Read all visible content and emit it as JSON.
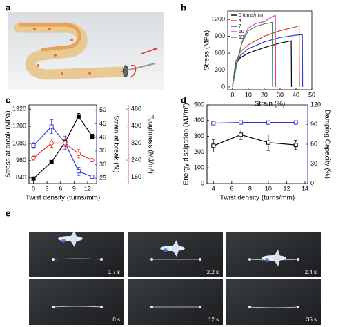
{
  "panel_labels": [
    "a",
    "b",
    "c",
    "d",
    "e"
  ],
  "chart_data": [
    {
      "type": "line",
      "xlabel": "Strain (%)",
      "ylabel": "Stress (MPa)",
      "xlim": [
        -3,
        50
      ],
      "xticks": [
        0,
        10,
        20,
        30,
        40,
        50
      ],
      "ylim": [
        -50,
        1350
      ],
      "yticks": [
        0,
        300,
        600,
        900,
        1200
      ],
      "legend": "upper left",
      "series": [
        {
          "name": "0 turns/mm",
          "color": "#000000",
          "x": [
            0,
            2,
            5,
            10,
            20,
            30,
            37,
            37.2
          ],
          "values": [
            0,
            400,
            520,
            600,
            700,
            780,
            820,
            0
          ]
        },
        {
          "name": "4",
          "color": "#e8332a",
          "x": [
            0,
            2,
            5,
            10,
            20,
            30,
            40,
            42,
            42.2
          ],
          "values": [
            0,
            450,
            620,
            750,
            900,
            1000,
            1070,
            1090,
            0
          ]
        },
        {
          "name": "7",
          "color": "#2f3bd6",
          "x": [
            0,
            2,
            5,
            10,
            20,
            30,
            40,
            44,
            44.2
          ],
          "values": [
            0,
            400,
            560,
            680,
            800,
            880,
            920,
            930,
            0
          ]
        },
        {
          "name": "10",
          "color": "#e52ee0",
          "x": [
            0,
            3,
            6,
            10,
            15,
            20,
            25,
            27,
            27.2
          ],
          "values": [
            0,
            450,
            800,
            1050,
            1130,
            1160,
            1250,
            1270,
            0
          ]
        },
        {
          "name": "13",
          "color": "#2ca02c",
          "x": [
            0,
            3,
            6,
            10,
            15,
            20,
            24,
            25,
            25.2
          ],
          "values": [
            0,
            450,
            780,
            1000,
            1080,
            1120,
            1140,
            1150,
            0
          ]
        }
      ]
    },
    {
      "type": "line",
      "xlabel": "Twist density (turns/mm)",
      "ylabel": "Stress at break (MPa)",
      "y2label": "Strain at break (%)",
      "y3label": "Toughness (MJ/m³)",
      "x": [
        0,
        4,
        7,
        10,
        13
      ],
      "xlim": [
        -1,
        14
      ],
      "xticks": [
        0,
        3,
        6,
        9,
        12
      ],
      "ylim": [
        800,
        1350
      ],
      "yticks": [
        840,
        960,
        1080,
        1200,
        1320
      ],
      "y2lim": [
        23,
        52
      ],
      "y2ticks": [
        25,
        30,
        35,
        40,
        45,
        50
      ],
      "y3lim": [
        130,
        500
      ],
      "y3ticks": [
        160,
        240,
        320,
        400,
        480
      ],
      "series": [
        {
          "color": "#000000",
          "marker": "square",
          "filled": true,
          "values": [
            835,
            950,
            1090,
            1270,
            1130
          ],
          "errors": [
            10,
            10,
            20,
            20,
            15
          ]
        },
        {
          "color": "#2f3bd6",
          "marker": "square",
          "filled": false,
          "axis": "y2",
          "values": [
            37,
            44,
            38,
            27.5,
            25.5
          ],
          "errors": [
            1,
            2.5,
            2.5,
            1.5,
            0.5
          ]
        },
        {
          "color": "#e8332a",
          "marker": "circle",
          "filled": false,
          "axis": "y3",
          "values": [
            250,
            320,
            320,
            270,
            240
          ],
          "errors": [
            10,
            20,
            15,
            20,
            5
          ]
        }
      ]
    },
    {
      "type": "line",
      "xlabel": "Twist density (turns/mm)",
      "ylabel": "Energy dissipation (MJ/m³)",
      "y2label": "Damping Capacity (%)",
      "x": [
        4,
        7,
        10,
        13
      ],
      "xlim": [
        3.3,
        14.3
      ],
      "xticks": [
        4,
        6,
        8,
        10,
        12,
        14
      ],
      "ylim": [
        0,
        500
      ],
      "yticks": [
        0,
        100,
        200,
        300,
        400,
        500
      ],
      "y2lim": [
        0,
        120
      ],
      "y2ticks": [
        0,
        30,
        60,
        90,
        120
      ],
      "series": [
        {
          "color": "#000000",
          "marker": "square",
          "filled": false,
          "values": [
            240,
            310,
            260,
            245
          ],
          "errors": [
            40,
            30,
            50,
            30
          ]
        },
        {
          "color": "#2f3bd6",
          "marker": "square",
          "filled": false,
          "axis": "y2",
          "values": [
            92,
            93,
            93,
            93
          ],
          "errors": [
            2,
            2,
            2,
            2
          ]
        }
      ]
    }
  ],
  "photos": {
    "times": [
      "1.7 s",
      "2.2 s",
      "2.4 s",
      "0 s",
      "12 s",
      "35 s"
    ]
  }
}
